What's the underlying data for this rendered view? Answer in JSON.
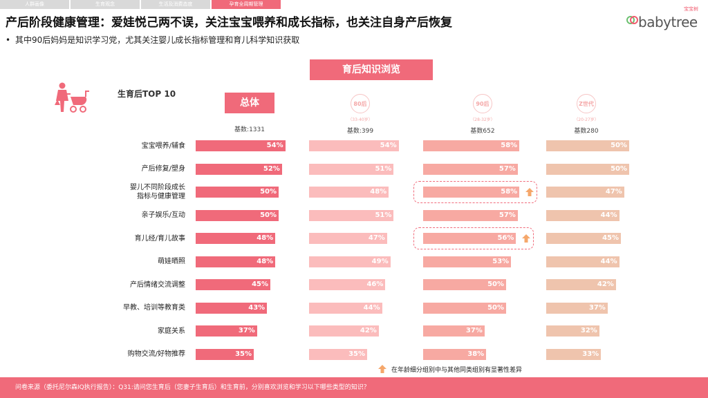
{
  "tabs": [
    {
      "label": "人群画像",
      "active": false
    },
    {
      "label": "生育观念",
      "active": false
    },
    {
      "label": "生活及消费态度",
      "active": false
    },
    {
      "label": "孕育全周期管理",
      "active": true
    }
  ],
  "title": "产后阶段健康管理：爱娃悦己两不误，关注宝宝喂养和成长指标，也关注自身产后恢复",
  "subtitle": "其中90后妈妈是知识学习党，尤其关注婴儿成长指标管理和育儿科学知识获取",
  "bullet": "•",
  "logo": {
    "cn": "宝宝树",
    "en": "babytree"
  },
  "banner": "育后知识浏览",
  "section_label": "生育后TOP 10",
  "icons": {
    "section": "mother-with-stroller-icon",
    "logo": "babytree-logo-icon",
    "highlight": "up-arrow-icon"
  },
  "columns": [
    {
      "name": "总体",
      "sub": "",
      "base": "基数:1331",
      "color": "#f06a7a"
    },
    {
      "name": "80后",
      "sub": "（33-40岁）",
      "base": "基数:399",
      "color": "#fbbcbc"
    },
    {
      "name": "90后",
      "sub": "（28-32岁）",
      "base": "基数652",
      "color": "#f7a9a2"
    },
    {
      "name": "Z世代",
      "sub": "（20-27岁）",
      "base": "基数280",
      "color": "#efc4ad"
    }
  ],
  "rows": [
    "宝宝喂养/辅食",
    "产后修复/塑身",
    "婴儿不同阶段成长\n指标与健康管理",
    "亲子娱乐/互动",
    "育儿经/育儿故事",
    "萌娃晒照",
    "产后情绪交流调整",
    "早教、培训等教育类",
    "家庭关系",
    "购物交流/好物推荐"
  ],
  "legend": "在年龄细分组别中与其他同类组别有显著性差异",
  "footer": "问卷来源（委托尼尔森IQ执行报告）：Q31:请问您生育后（您妻子生育后）和生育前，分别喜欢浏览和学习以下哪些类型的知识？",
  "chart_data": {
    "type": "bar",
    "title": "生育后TOP 10",
    "categories": [
      "宝宝喂养/辅食",
      "产后修复/塑身",
      "婴儿不同阶段成长指标与健康管理",
      "亲子娱乐/互动",
      "育儿经/育儿故事",
      "萌娃晒照",
      "产后情绪交流调整",
      "早教、培训等教育类",
      "家庭关系",
      "购物交流/好物推荐"
    ],
    "series": [
      {
        "name": "总体",
        "values": [
          54,
          52,
          50,
          50,
          48,
          48,
          45,
          43,
          37,
          35
        ]
      },
      {
        "name": "80后",
        "values": [
          54,
          51,
          48,
          51,
          47,
          49,
          46,
          44,
          42,
          35
        ]
      },
      {
        "name": "90后",
        "values": [
          58,
          57,
          58,
          57,
          56,
          53,
          50,
          50,
          37,
          38
        ]
      },
      {
        "name": "Z世代",
        "values": [
          50,
          50,
          47,
          44,
          45,
          44,
          42,
          37,
          32,
          33
        ]
      }
    ],
    "unit": "%",
    "highlights": [
      {
        "series": "90后",
        "category": "婴儿不同阶段成长指标与健康管理"
      },
      {
        "series": "90后",
        "category": "育儿经/育儿故事"
      }
    ]
  }
}
